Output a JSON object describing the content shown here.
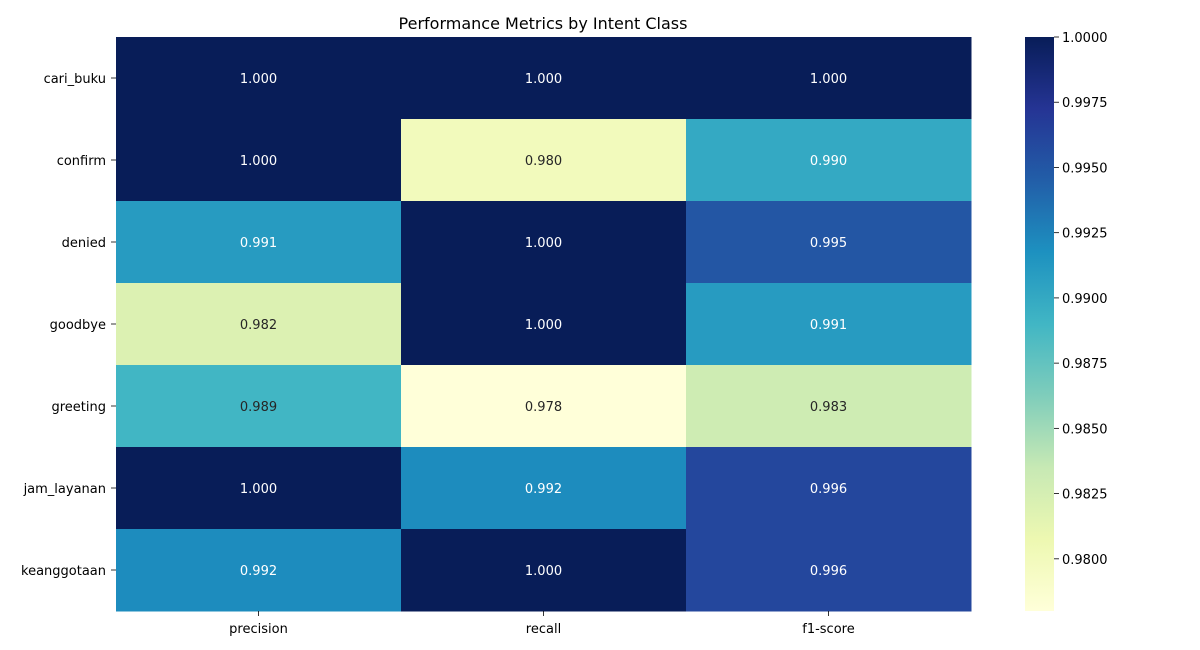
{
  "chart_data": {
    "type": "heatmap",
    "title": "Performance Metrics by Intent Class",
    "xlabel": "",
    "ylabel": "",
    "rows": [
      "cari_buku",
      "confirm",
      "denied",
      "goodbye",
      "greeting",
      "jam_layanan",
      "keanggotaan"
    ],
    "columns": [
      "precision",
      "recall",
      "f1-score"
    ],
    "values": [
      [
        1.0,
        1.0,
        1.0
      ],
      [
        1.0,
        0.98,
        0.99
      ],
      [
        0.991,
        1.0,
        0.995
      ],
      [
        0.982,
        1.0,
        0.991
      ],
      [
        0.989,
        0.978,
        0.983
      ],
      [
        1.0,
        0.992,
        0.996
      ],
      [
        0.992,
        1.0,
        0.996
      ]
    ],
    "labels": [
      [
        "1.000",
        "1.000",
        "1.000"
      ],
      [
        "1.000",
        "0.980",
        "0.990"
      ],
      [
        "0.991",
        "1.000",
        "0.995"
      ],
      [
        "0.982",
        "1.000",
        "0.991"
      ],
      [
        "0.989",
        "0.978",
        "0.983"
      ],
      [
        "1.000",
        "0.992",
        "0.996"
      ],
      [
        "0.992",
        "1.000",
        "0.996"
      ]
    ],
    "colormap": "YlGnBu",
    "vmin": 0.978,
    "vmax": 1.0,
    "colorbar": {
      "ticks": [
        0.98,
        0.9825,
        0.985,
        0.9875,
        0.99,
        0.9925,
        0.995,
        0.9975,
        1.0
      ],
      "tick_labels": [
        "0.9800",
        "0.9825",
        "0.9850",
        "0.9875",
        "0.9900",
        "0.9925",
        "0.9950",
        "0.9975",
        "1.0000"
      ]
    },
    "grid": false,
    "legend": "colorbar-right"
  }
}
